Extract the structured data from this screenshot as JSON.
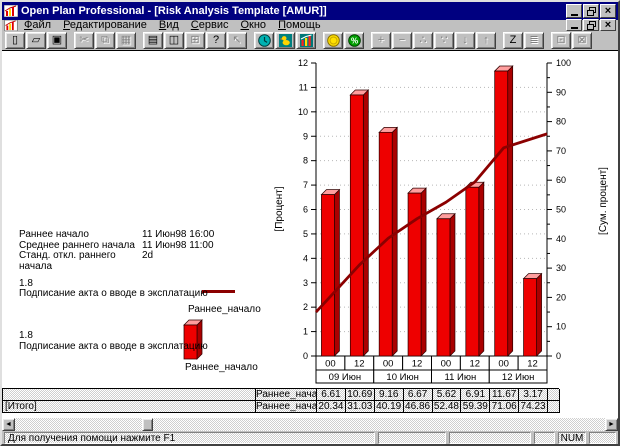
{
  "titlebar": {
    "title": "Open Plan Professional - [Risk Analysis Template [AMUR]]"
  },
  "menu": {
    "items": [
      "Файл",
      "Редактирование",
      "Вид",
      "Сервис",
      "Окно",
      "Помощь"
    ]
  },
  "toolbar": {
    "buttons": [
      {
        "name": "new",
        "glyph": "▯",
        "enabled": true
      },
      {
        "name": "open",
        "glyph": "▱",
        "enabled": true
      },
      {
        "name": "save",
        "glyph": "▣",
        "enabled": true,
        "gap": true
      },
      {
        "name": "cut",
        "glyph": "✂",
        "enabled": false
      },
      {
        "name": "copy",
        "glyph": "⧉",
        "enabled": false
      },
      {
        "name": "paste",
        "glyph": "▦",
        "enabled": false,
        "gap": true
      },
      {
        "name": "print",
        "glyph": "▤",
        "enabled": true
      },
      {
        "name": "print-preview",
        "glyph": "◫",
        "enabled": true
      },
      {
        "name": "spreadsheet",
        "glyph": "⊞",
        "enabled": false
      },
      {
        "name": "help",
        "glyph": "?",
        "enabled": true
      },
      {
        "name": "context-help",
        "glyph": "↖",
        "enabled": false,
        "gap": true
      },
      {
        "name": "time-analysis",
        "kind": "clock",
        "enabled": true
      },
      {
        "name": "resource-analysis",
        "kind": "duck",
        "enabled": true
      },
      {
        "name": "risk-analysis",
        "kind": "chart",
        "enabled": true,
        "gap": true
      },
      {
        "name": "cost-analysis",
        "kind": "coin",
        "enabled": true
      },
      {
        "name": "percent-complete",
        "kind": "percent",
        "enabled": true,
        "gap": true
      },
      {
        "name": "add",
        "glyph": "+",
        "enabled": false
      },
      {
        "name": "remove",
        "glyph": "−",
        "enabled": false
      },
      {
        "name": "link",
        "glyph": "∴",
        "enabled": false
      },
      {
        "name": "unlink",
        "glyph": "∵",
        "enabled": false
      },
      {
        "name": "move-down",
        "glyph": "↓",
        "enabled": false
      },
      {
        "name": "move-up",
        "glyph": "↑",
        "enabled": false,
        "gap": true
      },
      {
        "name": "zoom",
        "glyph": "Z",
        "enabled": true
      },
      {
        "name": "notes",
        "glyph": "≣",
        "enabled": false,
        "gap": true
      },
      {
        "name": "tile-windows",
        "glyph": "⊡",
        "enabled": false
      },
      {
        "name": "cascade-windows",
        "glyph": "⊠",
        "enabled": false
      }
    ]
  },
  "info": {
    "rows": [
      {
        "label": "Раннее начало",
        "value": "11 Июн98 16:00"
      },
      {
        "label": "Среднее раннего начала",
        "value": "11 Июн98 11:00"
      },
      {
        "label": "Станд. откл. раннего начала",
        "value": "2d"
      }
    ]
  },
  "legend": {
    "entries": [
      {
        "value": "1.8",
        "activity": "Подписание акта о вводе в эксплатацию",
        "series": "Раннее_начало",
        "swatch": "line"
      },
      {
        "value": "1.8",
        "activity": "Подписание акта о вводе в эксплатацию",
        "series": "Раннее_начало",
        "swatch": "bar"
      }
    ]
  },
  "chart_data": {
    "type": "bar",
    "categories": [
      "09 Июн 00",
      "09 Июн 12",
      "10 Июн 00",
      "10 Июн 12",
      "11 Июн 00",
      "11 Июн 12",
      "12 Июн 00",
      "12 Июн 12"
    ],
    "hour_labels": [
      "00",
      "12",
      "00",
      "12",
      "00",
      "12",
      "00",
      "12"
    ],
    "date_groups": [
      "09 Июн",
      "10 Июн",
      "11 Июн",
      "12 Июн"
    ],
    "series": [
      {
        "name": "Раннее_начало",
        "type": "bar",
        "axis": "left",
        "values": [
          6.61,
          10.69,
          9.16,
          6.67,
          5.62,
          6.91,
          11.67,
          3.17
        ]
      },
      {
        "name": "Раннее_начало",
        "type": "line",
        "axis": "right",
        "values": [
          20.34,
          31.03,
          40.19,
          46.86,
          52.48,
          59.39,
          71.06,
          74.23
        ]
      }
    ],
    "ylabel_left": "[Процент]",
    "ylim_left": [
      0,
      12
    ],
    "ytick_left": 1,
    "ylabel_right": "[Сум. процент]",
    "ylim_right": [
      0,
      100
    ],
    "ytick_right": 10,
    "grid": "dotted-horizontal",
    "legend_position": "left"
  },
  "table": {
    "rows": [
      {
        "group": "",
        "series": "Раннее_начало",
        "values": [
          "6.61",
          "10.69",
          "9.16",
          "6.67",
          "5.62",
          "6.91",
          "11.67",
          "3.17"
        ]
      },
      {
        "group": "[Итого]",
        "series": "Раннее_начало",
        "values": [
          "20.34",
          "31.03",
          "40.19",
          "46.86",
          "52.48",
          "59.39",
          "71.06",
          "74.23"
        ]
      }
    ]
  },
  "statusbar": {
    "message": "Для получения помощи нажмите F1",
    "num": "NUM"
  },
  "colors": {
    "titlebar": "#000080",
    "bar_front": "#ee0000",
    "bar_top": "#ff9e9e",
    "bar_side": "#aa0000",
    "line": "#8b0000",
    "teal": "#008080",
    "grid": "#b8b8b8"
  }
}
